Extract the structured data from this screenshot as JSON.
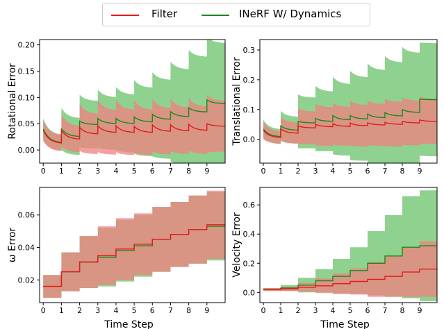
{
  "legend": {
    "entries": [
      {
        "label": "Filter",
        "color": "#e41a1c"
      },
      {
        "label": "INeRF W/ Dynamics",
        "color": "#1a8a1a"
      }
    ]
  },
  "colors": {
    "filter_line": "#e41a1c",
    "filter_fill": "#f08080",
    "dyn_line": "#1a8a1a",
    "dyn_fill": "#8fd18f",
    "overlap_fill": "#a07850"
  },
  "chart_data": [
    {
      "type": "line",
      "panel": "top-left",
      "ylabel": "Rotational Error",
      "xlabel": "",
      "xticks": [
        "0",
        "1",
        "2",
        "3",
        "4",
        "5",
        "6",
        "7",
        "8",
        "9"
      ],
      "yticks": [
        "0.00",
        "0.05",
        "0.10",
        "0.15",
        "0.20"
      ],
      "ylim": [
        -0.025,
        0.21
      ],
      "xlim": [
        -0.2,
        10.0
      ],
      "shape": "decaying",
      "series": [
        {
          "name": "Filter",
          "peak": [
            0.037,
            0.037,
            0.043,
            0.046,
            0.046,
            0.045,
            0.048,
            0.048,
            0.049,
            0.05
          ],
          "end": [
            0.012,
            0.02,
            0.03,
            0.033,
            0.033,
            0.033,
            0.035,
            0.036,
            0.037,
            0.045
          ],
          "band_peak": [
            0.02,
            0.03,
            0.045,
            0.05,
            0.05,
            0.05,
            0.05,
            0.05,
            0.05,
            0.055
          ],
          "band_end": [
            0.015,
            0.025,
            0.038,
            0.042,
            0.043,
            0.043,
            0.044,
            0.044,
            0.045,
            0.048
          ]
        },
        {
          "name": "INeRF W/ Dynamics",
          "peak": [
            0.04,
            0.04,
            0.055,
            0.06,
            0.06,
            0.063,
            0.068,
            0.073,
            0.08,
            0.095
          ],
          "end": [
            0.013,
            0.025,
            0.048,
            0.05,
            0.05,
            0.053,
            0.058,
            0.063,
            0.072,
            0.088
          ],
          "band_peak": [
            0.02,
            0.04,
            0.05,
            0.055,
            0.06,
            0.07,
            0.08,
            0.095,
            0.11,
            0.12
          ],
          "band_end": [
            0.015,
            0.035,
            0.045,
            0.05,
            0.055,
            0.065,
            0.075,
            0.09,
            0.105,
            0.115
          ]
        }
      ]
    },
    {
      "type": "line",
      "panel": "top-right",
      "ylabel": "Translational Error",
      "xlabel": "",
      "xticks": [
        "0",
        "1",
        "2",
        "3",
        "4",
        "5",
        "6",
        "7",
        "8",
        "9"
      ],
      "yticks": [
        "0.0",
        "0.1",
        "0.2",
        "0.3"
      ],
      "ylim": [
        -0.08,
        0.335
      ],
      "xlim": [
        -0.2,
        10.0
      ],
      "shape": "decaying",
      "series": [
        {
          "name": "Filter",
          "peak": [
            0.03,
            0.035,
            0.045,
            0.05,
            0.052,
            0.055,
            0.055,
            0.057,
            0.06,
            0.065
          ],
          "end": [
            0.005,
            0.02,
            0.038,
            0.042,
            0.043,
            0.045,
            0.048,
            0.05,
            0.055,
            0.06
          ],
          "band_peak": [
            0.03,
            0.04,
            0.06,
            0.07,
            0.07,
            0.075,
            0.075,
            0.08,
            0.08,
            0.08
          ],
          "band_end": [
            0.02,
            0.035,
            0.055,
            0.065,
            0.065,
            0.07,
            0.07,
            0.075,
            0.075,
            0.075
          ]
        },
        {
          "name": "INeRF W/ Dynamics",
          "peak": [
            0.035,
            0.045,
            0.06,
            0.07,
            0.08,
            0.08,
            0.085,
            0.09,
            0.1,
            0.135
          ],
          "end": [
            0.008,
            0.03,
            0.055,
            0.06,
            0.065,
            0.068,
            0.072,
            0.078,
            0.09,
            0.133
          ],
          "band_peak": [
            0.03,
            0.05,
            0.09,
            0.11,
            0.13,
            0.15,
            0.17,
            0.19,
            0.21,
            0.19
          ],
          "band_end": [
            0.025,
            0.045,
            0.085,
            0.1,
            0.12,
            0.14,
            0.16,
            0.18,
            0.2,
            0.19
          ]
        }
      ]
    },
    {
      "type": "line",
      "panel": "bottom-left",
      "ylabel": "ω Error",
      "xlabel": "Time Step",
      "xticks": [
        "0",
        "1",
        "2",
        "3",
        "4",
        "5",
        "6",
        "7",
        "8",
        "9"
      ],
      "yticks": [
        "0.02",
        "0.04",
        "0.06"
      ],
      "ylim": [
        0.006,
        0.077
      ],
      "xlim": [
        -0.2,
        10.0
      ],
      "shape": "step",
      "series": [
        {
          "name": "Filter",
          "values": [
            0.016,
            0.025,
            0.031,
            0.035,
            0.039,
            0.042,
            0.045,
            0.048,
            0.051,
            0.054
          ],
          "band": [
            0.007,
            0.012,
            0.016,
            0.018,
            0.019,
            0.019,
            0.02,
            0.02,
            0.021,
            0.021
          ]
        },
        {
          "name": "INeRF W/ Dynamics",
          "values": [
            0.016,
            0.025,
            0.031,
            0.034,
            0.038,
            0.041,
            0.045,
            0.048,
            0.051,
            0.053
          ],
          "band": [
            0.007,
            0.012,
            0.016,
            0.018,
            0.019,
            0.019,
            0.02,
            0.02,
            0.021,
            0.021
          ]
        }
      ]
    },
    {
      "type": "line",
      "panel": "bottom-right",
      "ylabel": "Velocity Error",
      "xlabel": "Time Step",
      "xticks": [
        "0",
        "1",
        "2",
        "3",
        "4",
        "5",
        "6",
        "7",
        "8",
        "9"
      ],
      "yticks": [
        "0.0",
        "0.2",
        "0.4",
        "0.6"
      ],
      "ylim": [
        -0.07,
        0.72
      ],
      "xlim": [
        -0.2,
        10.0
      ],
      "shape": "step",
      "series": [
        {
          "name": "Filter",
          "values": [
            0.02,
            0.025,
            0.035,
            0.045,
            0.06,
            0.075,
            0.09,
            0.11,
            0.14,
            0.16
          ],
          "band": [
            0.01,
            0.015,
            0.03,
            0.05,
            0.07,
            0.09,
            0.12,
            0.14,
            0.17,
            0.19
          ]
        },
        {
          "name": "INeRF W/ Dynamics",
          "values": [
            0.02,
            0.03,
            0.05,
            0.08,
            0.11,
            0.15,
            0.2,
            0.25,
            0.31,
            0.32
          ],
          "band": [
            0.01,
            0.02,
            0.05,
            0.08,
            0.12,
            0.16,
            0.22,
            0.28,
            0.35,
            0.38
          ]
        }
      ]
    }
  ]
}
